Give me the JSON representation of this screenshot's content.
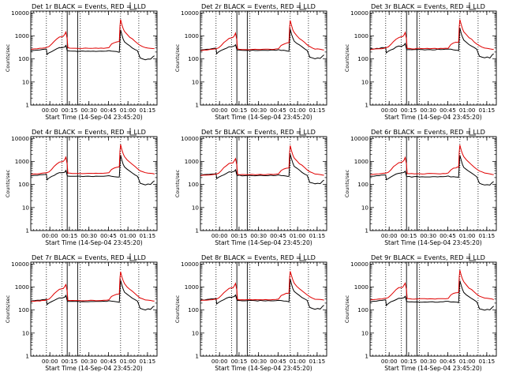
{
  "chart_data": {
    "type": "line",
    "panels": [
      {
        "title": "Det 1r BLACK = Events, RED = LLD",
        "variant": 0
      },
      {
        "title": "Det 2r BLACK = Events, RED = LLD",
        "variant": 1
      },
      {
        "title": "Det 3r BLACK = Events, RED = LLD",
        "variant": 2
      },
      {
        "title": "Det 4r BLACK = Events, RED = LLD",
        "variant": 3
      },
      {
        "title": "Det 5r BLACK = Events, RED = LLD",
        "variant": 4
      },
      {
        "title": "Det 6r BLACK = Events, RED = LLD",
        "variant": 5
      },
      {
        "title": "Det 7r BLACK = Events, RED = LLD",
        "variant": 6
      },
      {
        "title": "Det 8r BLACK = Events, RED = LLD",
        "variant": 7
      },
      {
        "title": "Det 9r BLACK = Events, RED = LLD",
        "variant": 8
      }
    ],
    "xlabel": "Start Time (14-Sep-04 23:45:20)",
    "ylabel": "Counts/sec",
    "x_tick_labels": [
      "00:00",
      "00:15",
      "00:30",
      "00:45",
      "01:00",
      "01:15"
    ],
    "x_tick_minutes": [
      14.67,
      29.67,
      44.67,
      59.67,
      74.67,
      89.67
    ],
    "xlim_minutes": [
      0,
      97
    ],
    "y_scale": "log",
    "ylim": [
      1,
      12000
    ],
    "y_tick_labels": [
      "1",
      "10",
      "100",
      "1000",
      "10000"
    ],
    "y_tick_values": [
      1,
      10,
      100,
      1000,
      10000
    ],
    "vertical_lines_solid_minutes": [
      28,
      36
    ],
    "vertical_lines_dotted_minutes": [
      12,
      24,
      38,
      69,
      83
    ],
    "series": [
      {
        "name": "Events",
        "color": "#000000",
        "x": [
          0,
          1,
          3,
          5,
          7,
          9,
          11,
          12,
          12.5,
          14,
          16,
          18,
          20,
          22,
          24,
          26,
          27,
          28,
          28.5,
          30,
          32,
          34,
          36,
          38,
          40,
          42,
          44,
          46,
          48,
          50,
          52,
          54,
          56,
          58,
          60,
          62,
          64,
          66,
          67,
          68,
          68.5,
          69,
          70,
          71,
          72,
          74,
          76,
          78,
          80,
          82,
          83,
          84,
          86,
          88,
          90,
          92,
          94,
          95
        ],
        "values": [
          240,
          250,
          255,
          262,
          270,
          278,
          285,
          290,
          170,
          200,
          230,
          260,
          300,
          340,
          330,
          360,
          420,
          250,
          240,
          238,
          235,
          235,
          235,
          235,
          235,
          235,
          235,
          236,
          234,
          235,
          237,
          236,
          236,
          240,
          250,
          240,
          232,
          225,
          220,
          215,
          700,
          2000,
          1200,
          800,
          600,
          480,
          400,
          330,
          280,
          240,
          170,
          120,
          110,
          100,
          110,
          105,
          140,
          150
        ]
      },
      {
        "name": "LLD",
        "color": "#e00000",
        "x": [
          0,
          1,
          3,
          5,
          7,
          9,
          11,
          12,
          14,
          16,
          18,
          20,
          22,
          24,
          25,
          26,
          27,
          28,
          28.5,
          30,
          32,
          34,
          36,
          38,
          40,
          42,
          44,
          46,
          48,
          50,
          52,
          54,
          56,
          58,
          60,
          62,
          64,
          66,
          67,
          68,
          68.5,
          69,
          70,
          71,
          72,
          74,
          76,
          78,
          80,
          82,
          84,
          86,
          88,
          90,
          92,
          94,
          95
        ],
        "values": [
          250,
          260,
          265,
          270,
          275,
          282,
          290,
          300,
          330,
          420,
          560,
          700,
          850,
          900,
          920,
          1100,
          1400,
          700,
          290,
          282,
          280,
          280,
          280,
          280,
          280,
          280,
          280,
          282,
          280,
          281,
          282,
          283,
          285,
          290,
          300,
          420,
          480,
          520,
          540,
          550,
          2500,
          5000,
          3000,
          2000,
          1500,
          1100,
          850,
          700,
          560,
          450,
          370,
          330,
          300,
          290,
          280,
          270,
          265
        ]
      }
    ]
  }
}
